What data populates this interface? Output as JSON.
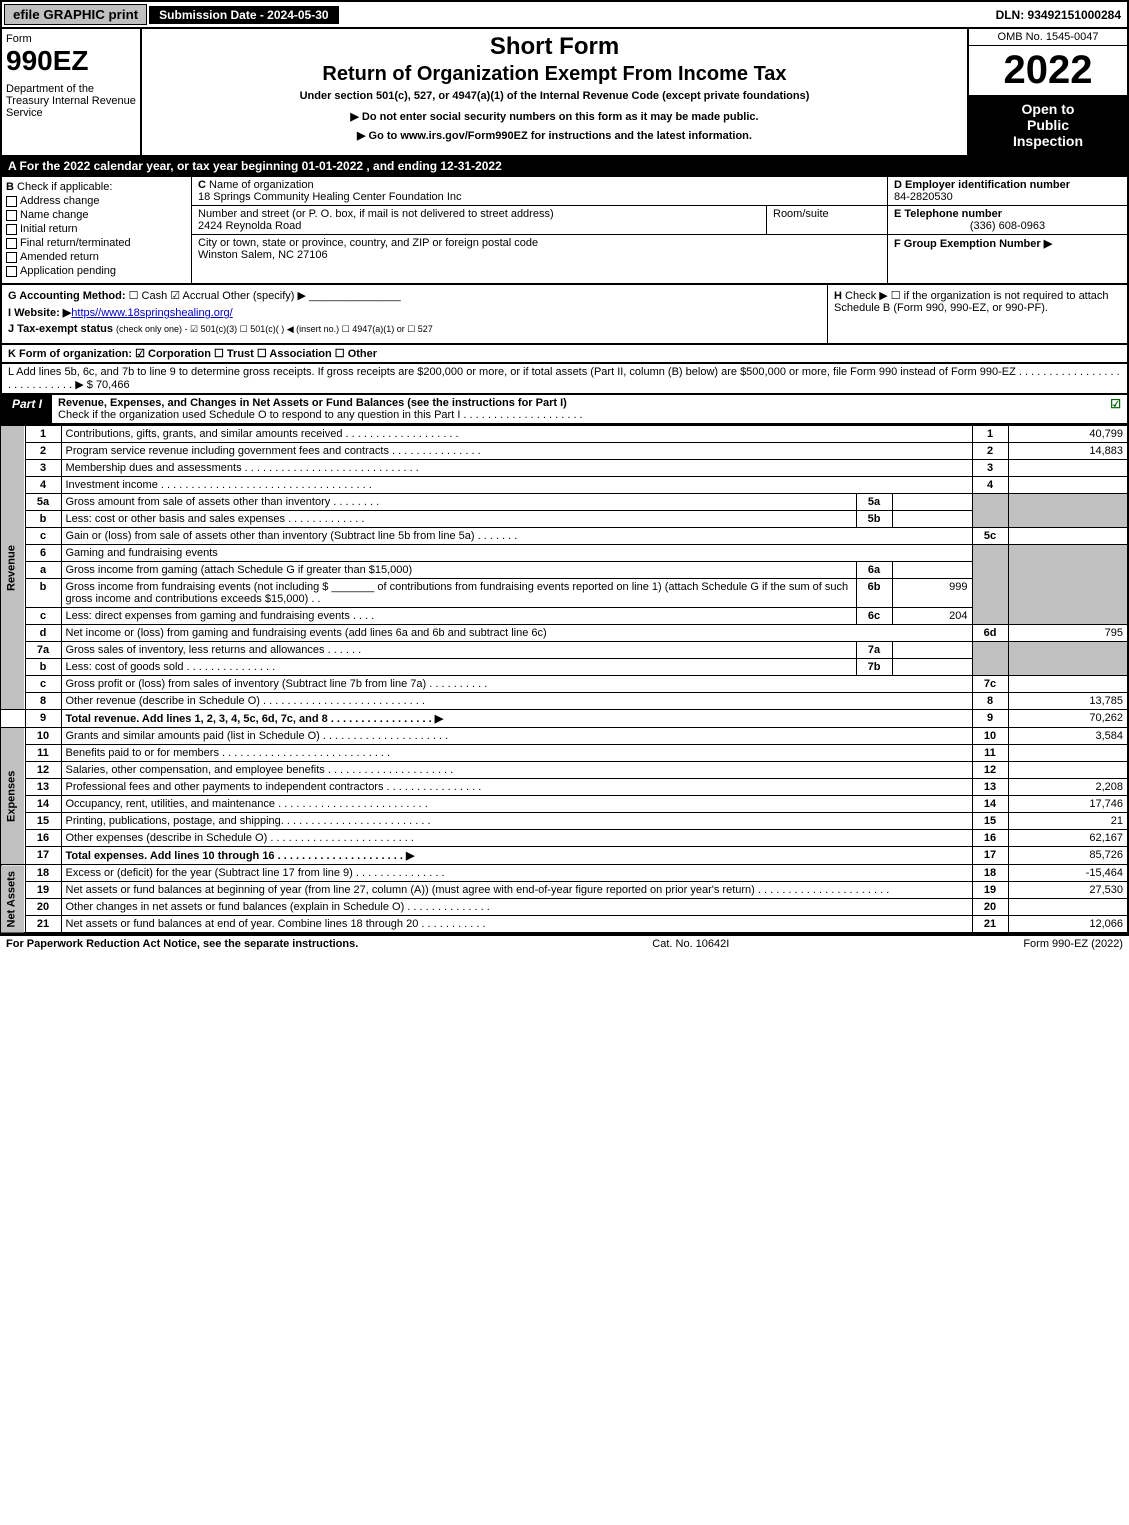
{
  "top": {
    "efile": "efile GRAPHIC print",
    "sub_date_label": "Submission Date - 2024-05-30",
    "dln": "DLN: 93492151000284"
  },
  "header": {
    "form_label": "Form",
    "form_number": "990EZ",
    "dept": "Department of the Treasury Internal Revenue Service",
    "short_form": "Short Form",
    "return_title": "Return of Organization Exempt From Income Tax",
    "under_section": "Under section 501(c), 527, or 4947(a)(1) of the Internal Revenue Code (except private foundations)",
    "do_not": "▶ Do not enter social security numbers on this form as it may be made public.",
    "go_to": "▶ Go to www.irs.gov/Form990EZ for instructions and the latest information.",
    "omb": "OMB No. 1545-0047",
    "year": "2022",
    "open1": "Open to",
    "open2": "Public",
    "open3": "Inspection"
  },
  "section_a": "A  For the 2022 calendar year, or tax year beginning 01-01-2022  , and ending 12-31-2022",
  "check": {
    "b_label": "B",
    "b_text": "Check if applicable:",
    "opts": [
      "Address change",
      "Name change",
      "Initial return",
      "Final return/terminated",
      "Amended return",
      "Application pending"
    ],
    "c_label": "C",
    "c_name_label": "Name of organization",
    "org_name": "18 Springs Community Healing Center Foundation Inc",
    "addr_label": "Number and street (or P. O. box, if mail is not delivered to street address)",
    "addr": "2424 Reynolda Road",
    "room_label": "Room/suite",
    "city_label": "City or town, state or province, country, and ZIP or foreign postal code",
    "city": "Winston Salem, NC  27106",
    "d_label": "D Employer identification number",
    "ein": "84-2820530",
    "e_label": "E Telephone number",
    "phone": "(336) 608-0963",
    "f_label": "F Group Exemption Number  ▶"
  },
  "gh": {
    "g_label": "G Accounting Method:",
    "g_opts": "☐ Cash  ☑ Accrual  Other (specify) ▶",
    "i_label": "I Website: ▶",
    "website": "https//www.18springshealing.org/",
    "j_label": "J Tax-exempt status",
    "j_text": "(check only one) - ☑ 501(c)(3) ☐ 501(c)( ) ◀ (insert no.) ☐ 4947(a)(1) or ☐ 527",
    "h_label": "H",
    "h_text": "Check ▶  ☐  if the organization is not required to attach Schedule B (Form 990, 990-EZ, or 990-PF)."
  },
  "k": "K Form of organization:  ☑ Corporation  ☐ Trust  ☐ Association  ☐ Other",
  "l": {
    "text": "L Add lines 5b, 6c, and 7b to line 9 to determine gross receipts. If gross receipts are $200,000 or more, or if total assets (Part II, column (B) below) are $500,000 or more, file Form 990 instead of Form 990-EZ  .  .  .  .  .  .  .  .  .  .  .  .  .  .  .  .  .  .  .  .  .  .  .  .  .  .  .  .  ▶ $",
    "amount": "70,466"
  },
  "part1": {
    "label": "Part I",
    "title": "Revenue, Expenses, and Changes in Net Assets or Fund Balances (see the instructions for Part I)",
    "check_text": "Check if the organization used Schedule O to respond to any question in this Part I  .  .  .  .  .  .  .  .  .  .  .  .  .  .  .  .  .  .  .  ."
  },
  "sides": {
    "rev": "Revenue",
    "exp": "Expenses",
    "net": "Net Assets"
  },
  "lines": {
    "l1": {
      "n": "1",
      "d": "Contributions, gifts, grants, and similar amounts received  .  .  .  .  .  .  .  .  .  .  .  .  .  .  .  .  .  .  .",
      "tn": "1",
      "tv": "40,799"
    },
    "l2": {
      "n": "2",
      "d": "Program service revenue including government fees and contracts  .  .  .  .  .  .  .  .  .  .  .  .  .  .  .",
      "tn": "2",
      "tv": "14,883"
    },
    "l3": {
      "n": "3",
      "d": "Membership dues and assessments  .  .  .  .  .  .  .  .  .  .  .  .  .  .  .  .  .  .  .  .  .  .  .  .  .  .  .  .  .",
      "tn": "3",
      "tv": ""
    },
    "l4": {
      "n": "4",
      "d": "Investment income  .  .  .  .  .  .  .  .  .  .  .  .  .  .  .  .  .  .  .  .  .  .  .  .  .  .  .  .  .  .  .  .  .  .  .",
      "tn": "4",
      "tv": ""
    },
    "l5a": {
      "n": "5a",
      "d": "Gross amount from sale of assets other than inventory  .  .  .  .  .  .  .  .",
      "sl": "5a",
      "sv": ""
    },
    "l5b": {
      "n": "b",
      "d": "Less: cost or other basis and sales expenses  .  .  .  .  .  .  .  .  .  .  .  .  .",
      "sl": "5b",
      "sv": ""
    },
    "l5c": {
      "n": "c",
      "d": "Gain or (loss) from sale of assets other than inventory (Subtract line 5b from line 5a)  .  .  .  .  .  .  .",
      "tn": "5c",
      "tv": ""
    },
    "l6": {
      "n": "6",
      "d": "Gaming and fundraising events"
    },
    "l6a": {
      "n": "a",
      "d": "Gross income from gaming (attach Schedule G if greater than $15,000)",
      "sl": "6a",
      "sv": ""
    },
    "l6b": {
      "n": "b",
      "d1": "Gross income from fundraising events (not including $",
      "d2": "of contributions from fundraising events reported on line 1) (attach Schedule G if the sum of such gross income and contributions exceeds $15,000)   .   .",
      "sl": "6b",
      "sv": "999"
    },
    "l6c": {
      "n": "c",
      "d": "Less: direct expenses from gaming and fundraising events   .   .   .   .",
      "sl": "6c",
      "sv": "204"
    },
    "l6d": {
      "n": "d",
      "d": "Net income or (loss) from gaming and fundraising events (add lines 6a and 6b and subtract line 6c)",
      "tn": "6d",
      "tv": "795"
    },
    "l7a": {
      "n": "7a",
      "d": "Gross sales of inventory, less returns and allowances  .  .  .  .  .  .",
      "sl": "7a",
      "sv": ""
    },
    "l7b": {
      "n": "b",
      "d": "Less: cost of goods sold       .  .  .  .  .  .  .  .  .  .  .  .  .  .  .",
      "sl": "7b",
      "sv": ""
    },
    "l7c": {
      "n": "c",
      "d": "Gross profit or (loss) from sales of inventory (Subtract line 7b from line 7a)  .  .  .  .  .  .  .  .  .  .",
      "tn": "7c",
      "tv": ""
    },
    "l8": {
      "n": "8",
      "d": "Other revenue (describe in Schedule O)  .  .  .  .  .  .  .  .  .  .  .  .  .  .  .  .  .  .  .  .  .  .  .  .  .  .  .",
      "tn": "8",
      "tv": "13,785"
    },
    "l9": {
      "n": "9",
      "d": "Total revenue. Add lines 1, 2, 3, 4, 5c, 6d, 7c, and 8  .  .  .  .  .  .  .  .  .  .  .  .  .  .  .  .  .   ▶",
      "tn": "9",
      "tv": "70,262"
    },
    "l10": {
      "n": "10",
      "d": "Grants and similar amounts paid (list in Schedule O)  .  .  .  .  .  .  .  .  .  .  .  .  .  .  .  .  .  .  .  .  .",
      "tn": "10",
      "tv": "3,584"
    },
    "l11": {
      "n": "11",
      "d": "Benefits paid to or for members    .  .  .  .  .  .  .  .  .  .  .  .  .  .  .  .  .  .  .  .  .  .  .  .  .  .  .  .",
      "tn": "11",
      "tv": ""
    },
    "l12": {
      "n": "12",
      "d": "Salaries, other compensation, and employee benefits .  .  .  .  .  .  .  .  .  .  .  .  .  .  .  .  .  .  .  .  .",
      "tn": "12",
      "tv": ""
    },
    "l13": {
      "n": "13",
      "d": "Professional fees and other payments to independent contractors  .  .  .  .  .  .  .  .  .  .  .  .  .  .  .  .",
      "tn": "13",
      "tv": "2,208"
    },
    "l14": {
      "n": "14",
      "d": "Occupancy, rent, utilities, and maintenance .  .  .  .  .  .  .  .  .  .  .  .  .  .  .  .  .  .  .  .  .  .  .  .  .",
      "tn": "14",
      "tv": "17,746"
    },
    "l15": {
      "n": "15",
      "d": "Printing, publications, postage, and shipping.  .  .  .  .  .  .  .  .  .  .  .  .  .  .  .  .  .  .  .  .  .  .  .  .",
      "tn": "15",
      "tv": "21"
    },
    "l16": {
      "n": "16",
      "d": "Other expenses (describe in Schedule O)    .  .  .  .  .  .  .  .  .  .  .  .  .  .  .  .  .  .  .  .  .  .  .  .",
      "tn": "16",
      "tv": "62,167"
    },
    "l17": {
      "n": "17",
      "d": "Total expenses. Add lines 10 through 16    .  .  .  .  .  .  .  .  .  .  .  .  .  .  .  .  .  .  .  .  .   ▶",
      "tn": "17",
      "tv": "85,726"
    },
    "l18": {
      "n": "18",
      "d": "Excess or (deficit) for the year (Subtract line 17 from line 9)     .  .  .  .  .  .  .  .  .  .  .  .  .  .  .",
      "tn": "18",
      "tv": "-15,464"
    },
    "l19": {
      "n": "19",
      "d": "Net assets or fund balances at beginning of year (from line 27, column (A)) (must agree with end-of-year figure reported on prior year's return) .  .  .  .  .  .  .  .  .  .  .  .  .  .  .  .  .  .  .  .  .  .",
      "tn": "19",
      "tv": "27,530"
    },
    "l20": {
      "n": "20",
      "d": "Other changes in net assets or fund balances (explain in Schedule O) .  .  .  .  .  .  .  .  .  .  .  .  .  .",
      "tn": "20",
      "tv": ""
    },
    "l21": {
      "n": "21",
      "d": "Net assets or fund balances at end of year. Combine lines 18 through 20 .  .  .  .  .  .  .  .  .  .  .",
      "tn": "21",
      "tv": "12,066"
    }
  },
  "footer": {
    "left": "For Paperwork Reduction Act Notice, see the separate instructions.",
    "center": "Cat. No. 10642I",
    "right": "Form 990-EZ (2022)"
  }
}
